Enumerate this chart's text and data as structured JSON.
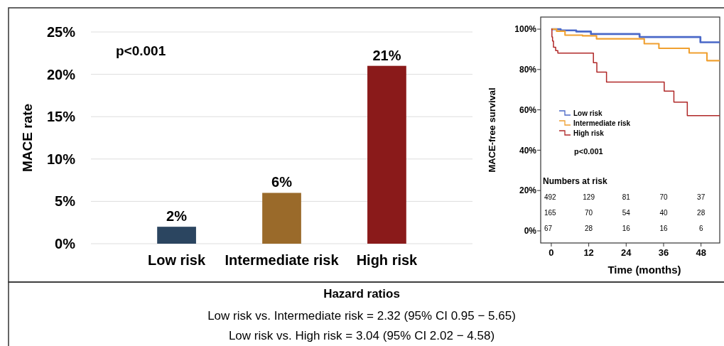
{
  "chart_data": [
    {
      "type": "bar",
      "ylabel": "MACE rate",
      "categories": [
        "Low risk",
        "Intermediate risk",
        "High risk"
      ],
      "values": [
        2,
        6,
        21
      ],
      "colors": [
        "#2b4560",
        "#9a6a2a",
        "#8a1a1a"
      ],
      "ylim": [
        0,
        25
      ],
      "yticks": [
        {
          "value": 0,
          "label": "0%"
        },
        {
          "value": 5,
          "label": "5%"
        },
        {
          "value": 10,
          "label": "10%"
        },
        {
          "value": 15,
          "label": "15%"
        },
        {
          "value": 20,
          "label": "20%"
        },
        {
          "value": 25,
          "label": "25%"
        }
      ],
      "grid": "y",
      "data_labels": true,
      "value_labels": [
        "2%",
        "6%",
        "21%"
      ],
      "annotations": [
        "p<0.001"
      ]
    },
    {
      "type": "step",
      "xlabel": "Time (months)",
      "ylabel": "MACE-free survival",
      "xlim": [
        -3.4,
        54
      ],
      "ylim": [
        -6,
        106
      ],
      "xticks": [
        0,
        12,
        24,
        36,
        48
      ],
      "yticks": [
        {
          "value": 0,
          "label": "0%"
        },
        {
          "value": 20,
          "label": "20%"
        },
        {
          "value": 40,
          "label": "40%"
        },
        {
          "value": 60,
          "label": "60%"
        },
        {
          "value": 80,
          "label": "80%"
        },
        {
          "value": 100,
          "label": "100%"
        }
      ],
      "legend": "left",
      "series": [
        {
          "name": "Low risk",
          "color": "#4a68c8",
          "x": [
            0,
            3,
            8,
            12.7,
            28.3,
            47.8,
            54
          ],
          "values": [
            100,
            99.4,
            98.8,
            97.6,
            96.1,
            93.5,
            93.5
          ]
        },
        {
          "name": "Intermediate risk",
          "color": "#f0a030",
          "x": [
            0,
            1.7,
            4.4,
            10,
            14.5,
            29.8,
            34.5,
            44.2,
            49.9,
            54
          ],
          "values": [
            100,
            99,
            97,
            96.7,
            95.2,
            92.8,
            90.5,
            88.2,
            84.4,
            84.4
          ]
        },
        {
          "name": "High risk",
          "color": "#b02828",
          "x": [
            0,
            0.2,
            0.4,
            0.7,
            1.4,
            2.1,
            13.5,
            14.6,
            17.7,
            36.2,
            39.3,
            43.6,
            54
          ],
          "values": [
            100,
            96.1,
            94.1,
            91,
            89.4,
            88.1,
            83.4,
            78.7,
            73.8,
            69.3,
            63.8,
            57.1,
            57.1
          ]
        }
      ],
      "annotations": [
        "p<0.001",
        "Numbers at risk",
        "492",
        "129",
        "81",
        "70",
        "37",
        "165",
        "70",
        "54",
        "40",
        "28",
        "67",
        "28",
        "16",
        "16",
        "6"
      ]
    },
    {
      "type": "other",
      "title": "Hazard ratios",
      "annotations": [
        "Low risk vs. Intermediate risk = 2.32 (95% CI 0.95 − 5.65)",
        "Low risk vs. High risk = 3.04 (95% CI 2.02 − 4.58)"
      ]
    }
  ]
}
